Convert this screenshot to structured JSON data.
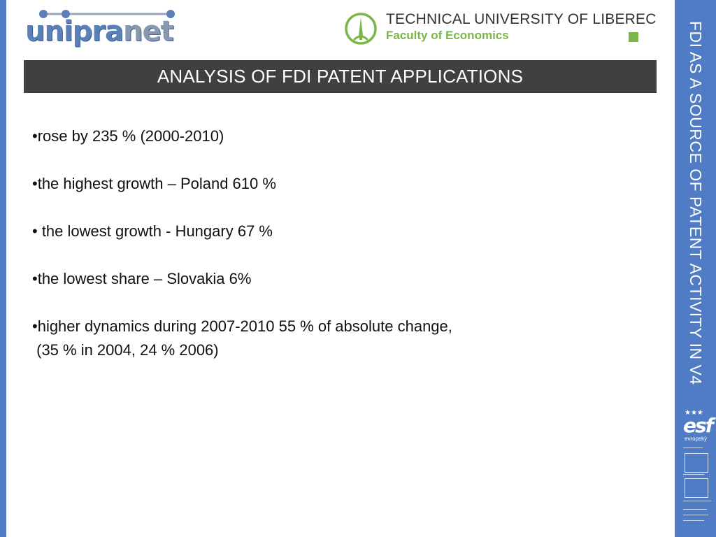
{
  "header": {
    "logo_left": {
      "brand": "unipra",
      "brand_net": "net"
    },
    "university": {
      "name": "TECHNICAL UNIVERSITY OF LIBEREC",
      "faculty": "Faculty of Economics"
    }
  },
  "slide": {
    "title": "ANALYSIS OF FDI PATENT APPLICATIONS",
    "side_title": "FDI AS A SOURCE OF PATENT ACTIVITY IN V4",
    "bullets": [
      "•rose by  235 % (2000-2010)",
      "•the highest growth – Poland 610 %",
      "• the lowest growth -  Hungary 67 %",
      "•the lowest share – Slovakia 6%",
      "•higher dynamics during 2007-2010 55 % of absolute change,",
      " (35 % in 2004, 24 % 2006)"
    ]
  },
  "footer_logo": {
    "mark": "esf",
    "sub": "evropský"
  },
  "colors": {
    "accent_blue": "#4f7cc4",
    "title_band": "#404040",
    "university_green": "#7ab648"
  }
}
